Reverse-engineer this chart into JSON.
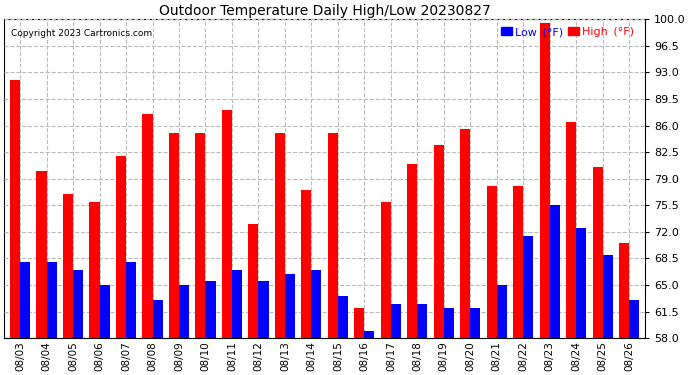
{
  "title": "Outdoor Temperature Daily High/Low 20230827",
  "copyright": "Copyright 2023 Cartronics.com",
  "dates": [
    "08/03",
    "08/04",
    "08/05",
    "08/06",
    "08/07",
    "08/08",
    "08/09",
    "08/10",
    "08/11",
    "08/12",
    "08/13",
    "08/14",
    "08/15",
    "08/16",
    "08/17",
    "08/18",
    "08/19",
    "08/20",
    "08/21",
    "08/22",
    "08/23",
    "08/24",
    "08/25",
    "08/26"
  ],
  "highs": [
    92.0,
    80.0,
    77.0,
    76.0,
    82.0,
    87.5,
    85.0,
    85.0,
    88.0,
    73.0,
    85.0,
    77.5,
    85.0,
    62.0,
    76.0,
    81.0,
    83.5,
    85.5,
    78.0,
    78.0,
    99.5,
    86.5,
    80.5,
    70.5
  ],
  "lows": [
    68.0,
    68.0,
    67.0,
    65.0,
    68.0,
    63.0,
    65.0,
    65.5,
    67.0,
    65.5,
    66.5,
    67.0,
    63.5,
    59.0,
    62.5,
    62.5,
    62.0,
    62.0,
    65.0,
    71.5,
    75.5,
    72.5,
    69.0,
    63.0
  ],
  "high_color": "#ff0000",
  "low_color": "#0000ff",
  "ylim_min": 58.0,
  "ylim_max": 100.0,
  "yticks": [
    58.0,
    61.5,
    65.0,
    68.5,
    72.0,
    75.5,
    79.0,
    82.5,
    86.0,
    89.5,
    93.0,
    96.5,
    100.0
  ],
  "grid_color": "#bbbbbb",
  "bg_color": "#ffffff",
  "bar_width": 0.38
}
